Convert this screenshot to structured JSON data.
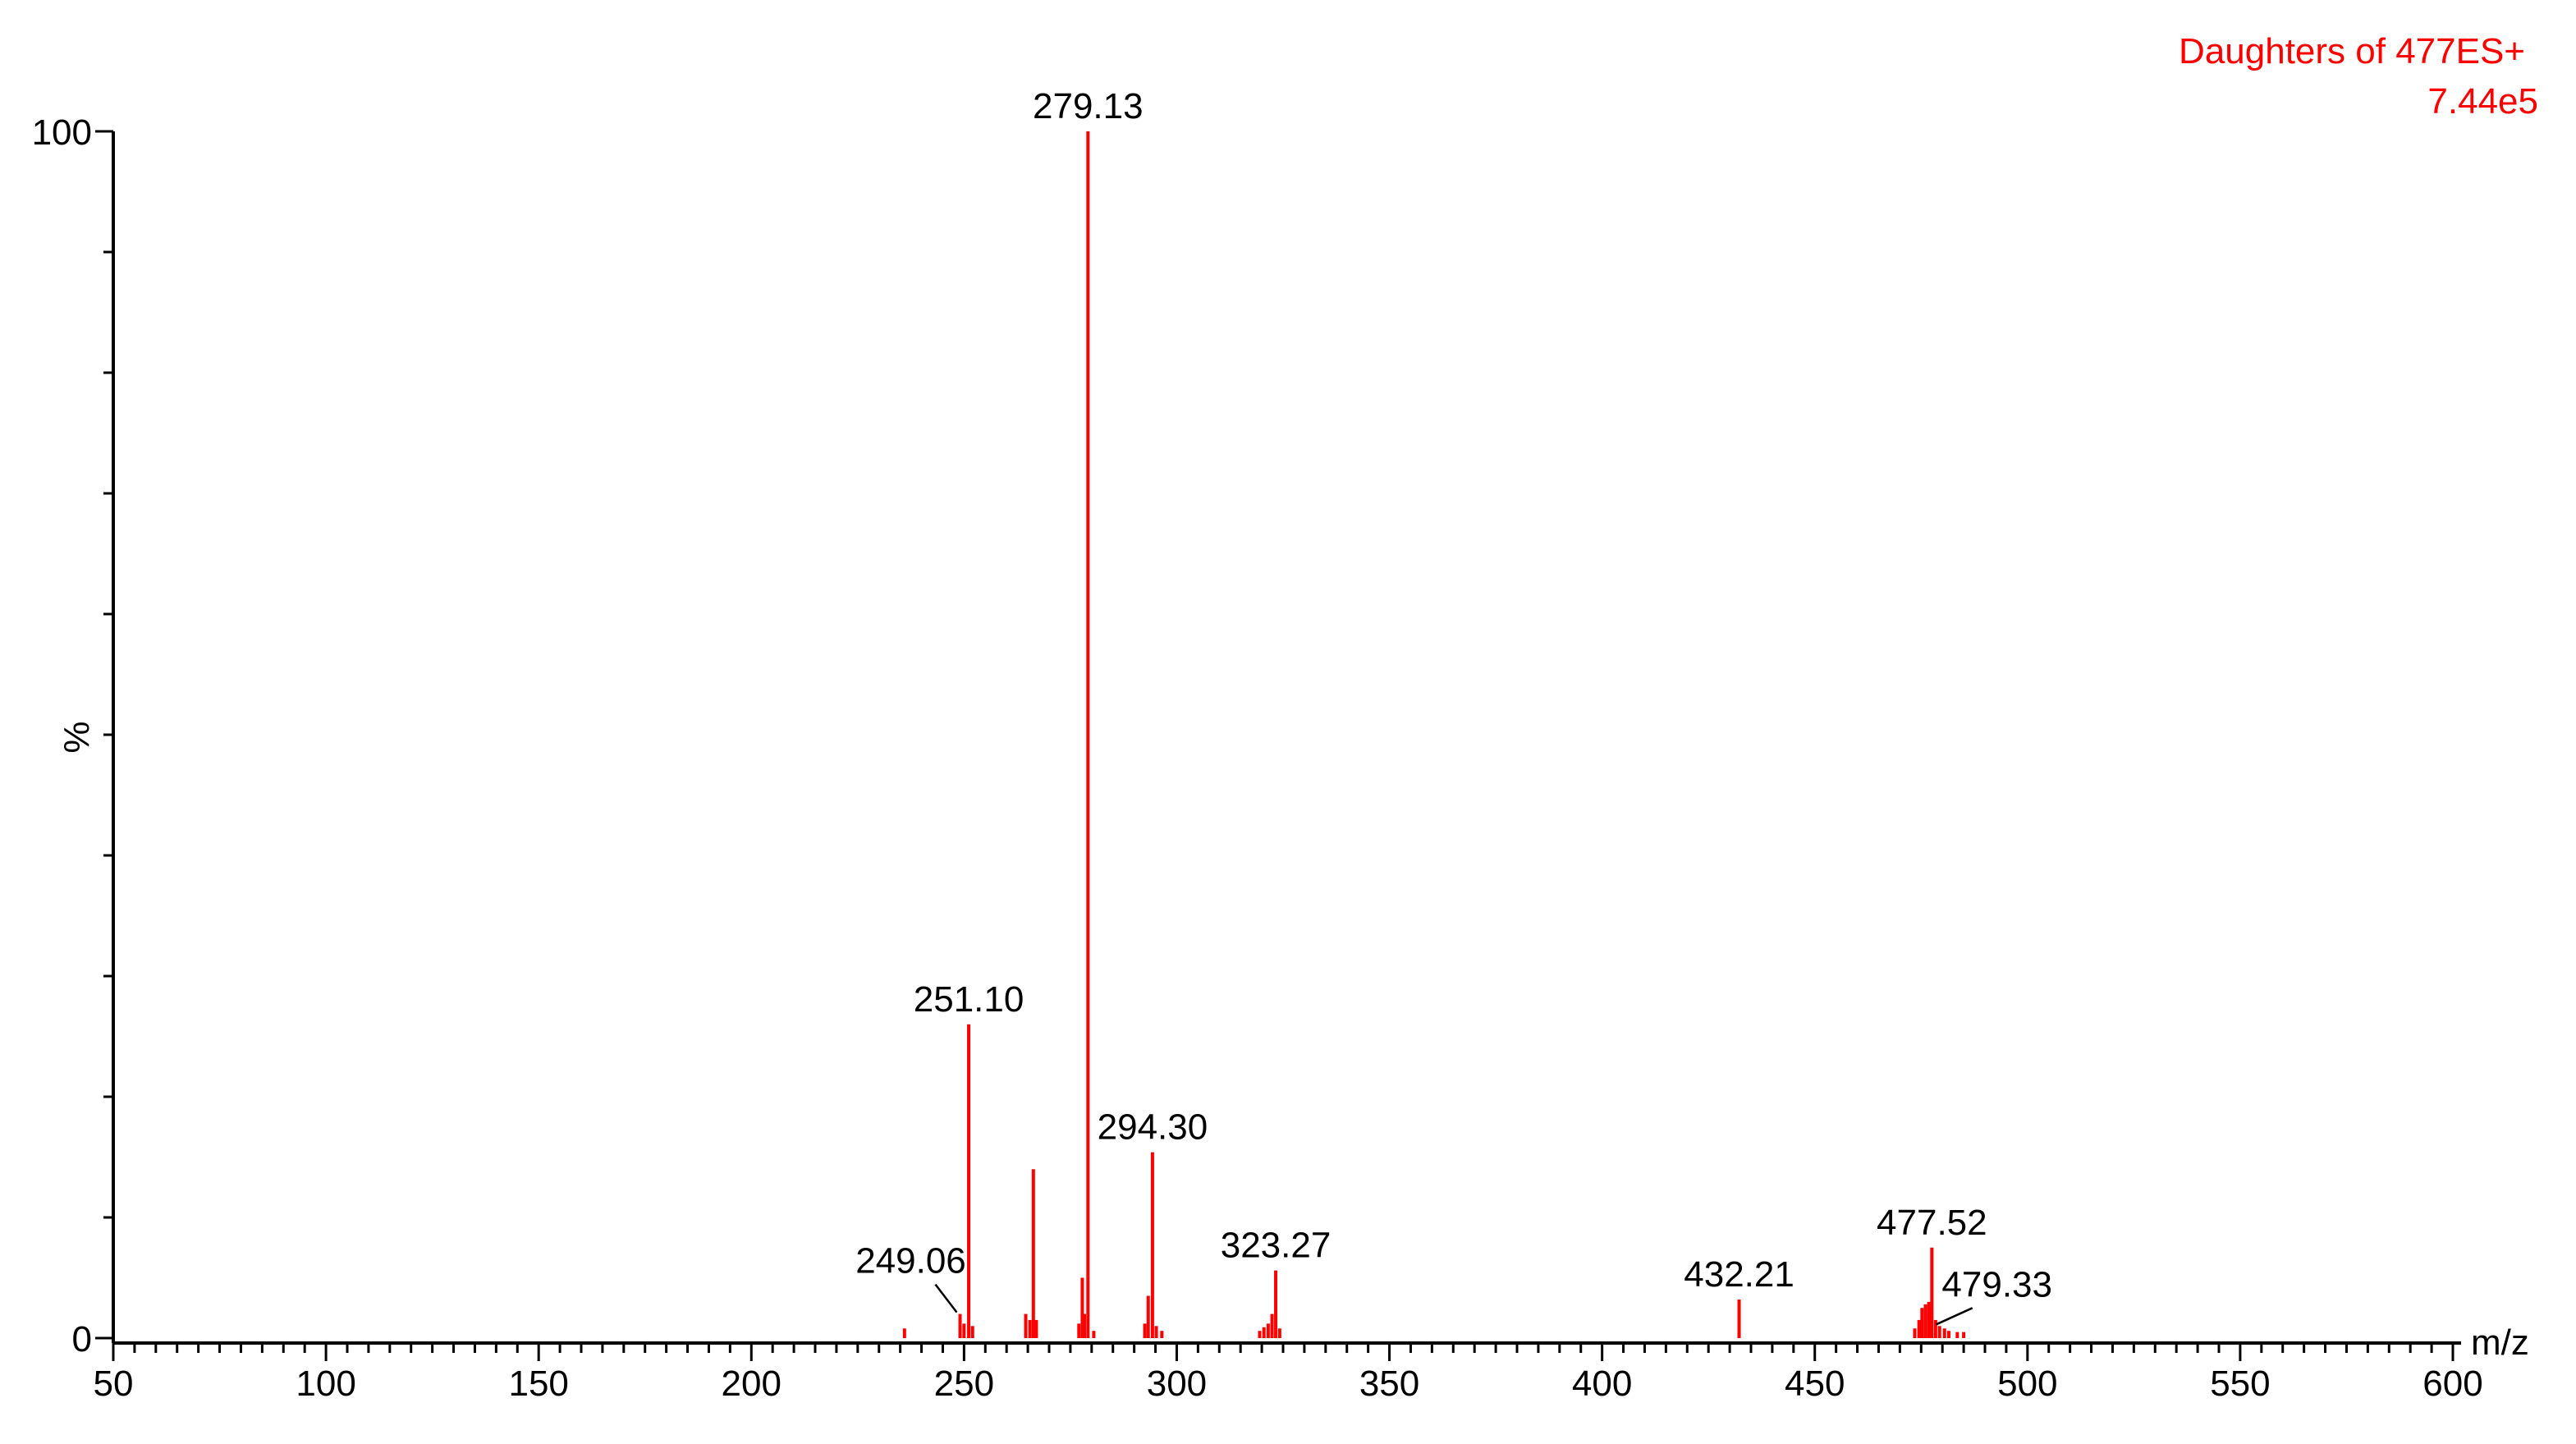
{
  "header": {
    "line1": "Daughters of 477ES+",
    "line2": "7.44e5"
  },
  "colors": {
    "peak": "#ff0000",
    "axis": "#000000",
    "header": "#ff0000"
  },
  "chart_data": {
    "type": "bar",
    "xlabel": "m/z",
    "ylabel": "%",
    "xlim": [
      50,
      600
    ],
    "ylim": [
      0,
      100
    ],
    "xticks": [
      50,
      100,
      150,
      200,
      250,
      300,
      350,
      400,
      450,
      500,
      550,
      600
    ],
    "xtick_minor_step": 5,
    "yticks": [
      0,
      100
    ],
    "ytick_minor_step": 10,
    "peaks": [
      {
        "x": 236.0,
        "y": 0.8
      },
      {
        "x": 249.06,
        "y": 2.0,
        "label": "249.06"
      },
      {
        "x": 250.0,
        "y": 1.2
      },
      {
        "x": 251.1,
        "y": 26.0,
        "label": "251.10"
      },
      {
        "x": 252.0,
        "y": 1.0
      },
      {
        "x": 264.5,
        "y": 2.0
      },
      {
        "x": 265.5,
        "y": 1.5
      },
      {
        "x": 266.3,
        "y": 14.0
      },
      {
        "x": 267.0,
        "y": 1.5
      },
      {
        "x": 277.0,
        "y": 1.2
      },
      {
        "x": 277.8,
        "y": 5.0
      },
      {
        "x": 278.3,
        "y": 2.0
      },
      {
        "x": 279.13,
        "y": 100.0,
        "label": "279.13"
      },
      {
        "x": 280.5,
        "y": 0.6
      },
      {
        "x": 292.5,
        "y": 1.2
      },
      {
        "x": 293.3,
        "y": 3.5
      },
      {
        "x": 294.3,
        "y": 15.4,
        "label": "294.30"
      },
      {
        "x": 295.2,
        "y": 1.0
      },
      {
        "x": 296.5,
        "y": 0.6
      },
      {
        "x": 319.5,
        "y": 0.6
      },
      {
        "x": 320.5,
        "y": 0.9
      },
      {
        "x": 321.5,
        "y": 1.2
      },
      {
        "x": 322.4,
        "y": 2.0
      },
      {
        "x": 323.27,
        "y": 5.6,
        "label": "323.27"
      },
      {
        "x": 324.2,
        "y": 0.8
      },
      {
        "x": 432.21,
        "y": 3.2,
        "label": "432.21"
      },
      {
        "x": 473.5,
        "y": 0.8
      },
      {
        "x": 474.5,
        "y": 1.5
      },
      {
        "x": 475.2,
        "y": 2.5
      },
      {
        "x": 476.0,
        "y": 2.8
      },
      {
        "x": 476.8,
        "y": 3.0
      },
      {
        "x": 477.52,
        "y": 7.5,
        "label": "477.52"
      },
      {
        "x": 478.4,
        "y": 1.5
      },
      {
        "x": 479.33,
        "y": 1.0,
        "label": "479.33"
      },
      {
        "x": 480.5,
        "y": 0.8
      },
      {
        "x": 481.5,
        "y": 0.6
      },
      {
        "x": 483.5,
        "y": 0.5
      },
      {
        "x": 485.0,
        "y": 0.5
      }
    ]
  }
}
